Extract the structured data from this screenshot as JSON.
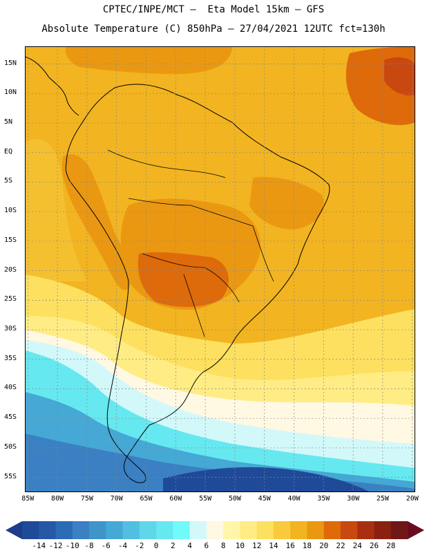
{
  "title_line1": "CPTEC/INPE/MCT –  Eta Model 15km – GFS",
  "title_line2": "Absolute Temperature (C) 850hPa – 27/04/2021 12UTC fct=130h",
  "map": {
    "lat_labels": [
      "15N",
      "10N",
      "5N",
      "EQ",
      "5S",
      "10S",
      "15S",
      "20S",
      "25S",
      "30S",
      "35S",
      "40S",
      "45S",
      "50S",
      "55S"
    ],
    "lon_labels": [
      "85W",
      "80W",
      "75W",
      "70W",
      "65W",
      "60W",
      "55W",
      "50W",
      "45W",
      "40W",
      "35W",
      "30W",
      "25W",
      "20W"
    ],
    "lat_range": [
      18,
      -57.5
    ],
    "lon_range": [
      -85.5,
      -19.5
    ]
  },
  "colorbar": {
    "labels": [
      "-14",
      "-12",
      "-10",
      "-8",
      "-6",
      "-4",
      "-2",
      "0",
      "2",
      "4",
      "6",
      "8",
      "10",
      "12",
      "14",
      "16",
      "18",
      "20",
      "22",
      "24",
      "26",
      "28"
    ],
    "colors": {
      "under": "#1e3c8c",
      "bins": [
        "#1f4a98",
        "#2558a5",
        "#2b6ab4",
        "#3a80c2",
        "#3f94c9",
        "#45a8d5",
        "#52bfe0",
        "#60d6ea",
        "#66e8f0",
        "#70fafa",
        "#d2f8fa",
        "#fff8e2",
        "#fff6a8",
        "#ffec84",
        "#fde060",
        "#f9ca3e",
        "#f2b420",
        "#ea9812",
        "#de6a0a",
        "#c84810",
        "#a83010",
        "#8a2010",
        "#701818"
      ],
      "over": "#6a0c20"
    }
  }
}
